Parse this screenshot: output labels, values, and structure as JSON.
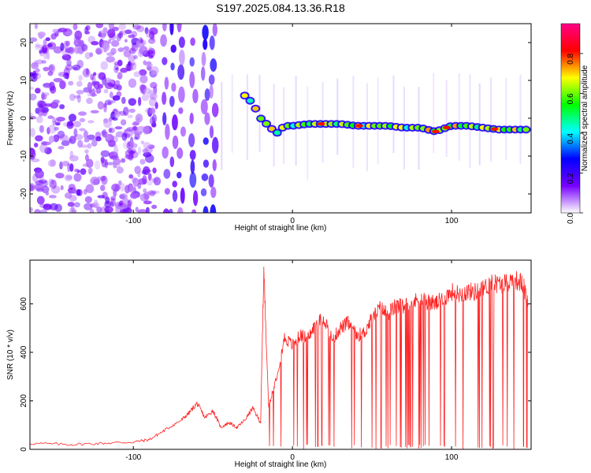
{
  "figure": {
    "title": "S197.2025.084.13.36.R18"
  },
  "chart_data": [
    {
      "type": "heatmap",
      "xlabel": "Height of straight line (km)",
      "ylabel": "Frequency (Hz)",
      "xlim": [
        -165,
        150
      ],
      "ylim": [
        -25,
        25
      ],
      "xticks": [
        -100,
        0,
        100
      ],
      "yticks": [
        -20,
        -10,
        0,
        10,
        20
      ],
      "colorbar": {
        "label": "Normalized spectral amplitude",
        "range": [
          0,
          0.95
        ],
        "ticks": [
          0.0,
          0.2,
          0.4,
          0.6,
          0.8
        ],
        "tick_labels": [
          "0.0",
          "0.2",
          "0.4",
          "0.6",
          "0.8"
        ],
        "colors": [
          "#ffffff",
          "#7700ff",
          "#0000ff",
          "#00ffff",
          "#00ff00",
          "#ffff00",
          "#ff0000",
          "#ff0088"
        ]
      },
      "ridge": {
        "x": [
          -30,
          -25,
          -20,
          -15,
          -10,
          -5,
          0,
          10,
          20,
          30,
          40,
          50,
          60,
          70,
          80,
          90,
          100,
          110,
          120,
          130,
          140,
          150
        ],
        "y": [
          6,
          4,
          0,
          -2,
          -4,
          -2,
          -2,
          -1.5,
          -1.5,
          -1.5,
          -2,
          -2,
          -2,
          -2.5,
          -2.5,
          -3.5,
          -2,
          -2,
          -2.5,
          -3,
          -3,
          -3
        ]
      },
      "grid": false
    },
    {
      "type": "line",
      "xlabel": "Height of straight line (km)",
      "ylabel": "SNR (10 * v/v)",
      "xlim": [
        -165,
        150
      ],
      "ylim": [
        0,
        780
      ],
      "xticks": [
        -100,
        0,
        100
      ],
      "yticks": [
        0,
        200,
        400,
        600
      ],
      "color": "#ff2020",
      "series": [
        {
          "x": [
            -165,
            -140,
            -120,
            -100,
            -90,
            -80,
            -70,
            -65,
            -60,
            -55,
            -50,
            -45,
            -40,
            -35,
            -30,
            -25,
            -20,
            -18,
            -15,
            -10,
            -5,
            0,
            5,
            10,
            15,
            20,
            25,
            30,
            35,
            40,
            45,
            50,
            55,
            60,
            65,
            70,
            75,
            80,
            85,
            90,
            95,
            100,
            105,
            110,
            115,
            120,
            125,
            130,
            135,
            140,
            145,
            148
          ],
          "y": [
            25,
            20,
            25,
            30,
            40,
            80,
            120,
            150,
            190,
            130,
            160,
            90,
            110,
            90,
            120,
            170,
            110,
            740,
            180,
            300,
            460,
            430,
            470,
            460,
            520,
            540,
            450,
            500,
            520,
            470,
            480,
            540,
            580,
            560,
            590,
            590,
            600,
            620,
            610,
            600,
            620,
            650,
            640,
            650,
            650,
            660,
            690,
            680,
            690,
            700,
            680,
            600
          ]
        }
      ],
      "grid": false
    }
  ]
}
